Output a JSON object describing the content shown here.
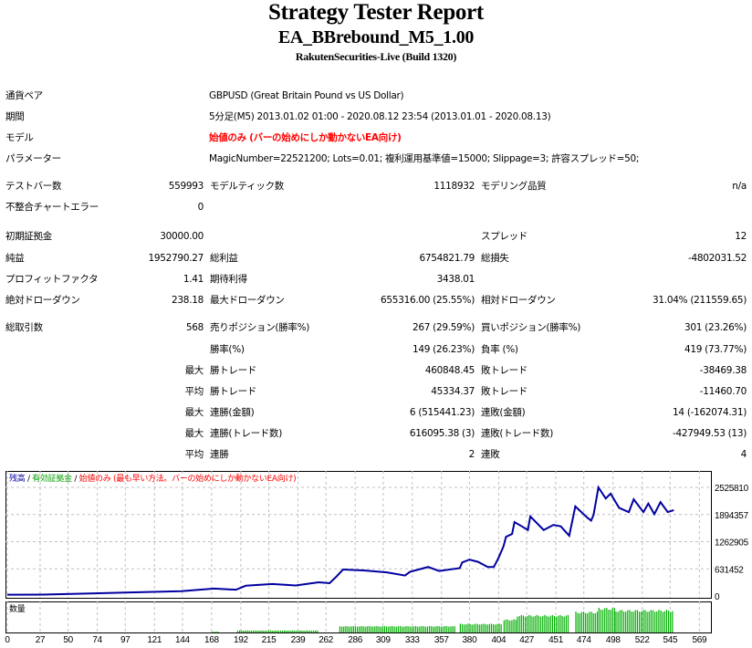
{
  "header": {
    "title": "Strategy Tester Report",
    "ea_name": "EA_BBrebound_M5_1.00",
    "server": "RakutenSecurities-Live (Build 1320)"
  },
  "info": [
    {
      "label": "通貨ペア",
      "value": "GBPUSD (Great Britain Pound vs US Dollar)"
    },
    {
      "label": "期間",
      "value": "5分足(M5) 2013.01.02 01:00 - 2020.08.12 23:54 (2013.01.01 - 2020.08.13)"
    },
    {
      "label": "モデル",
      "value": "始値のみ (バーの始めにしか動かないEA向け)"
    },
    {
      "label": "パラメーター",
      "value": "MagicNumber=22521200; Lots=0.01; 複利運用基準値=15000; Slippage=3; 許容スプレッド=50;"
    }
  ],
  "stats": [
    [
      "テストバー数",
      "559993",
      "モデルティック数",
      "1118932",
      "モデリング品質",
      "n/a"
    ],
    [
      "不整合チャートエラー",
      "0",
      "",
      "",
      "",
      ""
    ],
    [
      "初期証拠金",
      "30000.00",
      "",
      "",
      "スプレッド",
      "12"
    ],
    [
      "純益",
      "1952790.27",
      "総利益",
      "6754821.79",
      "総損失",
      "-4802031.52"
    ],
    [
      "プロフィットファクタ",
      "1.41",
      "期待利得",
      "3438.01",
      "",
      ""
    ],
    [
      "絶対ドローダウン",
      "238.18",
      "最大ドローダウン",
      "655316.00 (25.55%)",
      "相対ドローダウン",
      "31.04% (211559.65)"
    ],
    [
      "総取引数",
      "568",
      "売りポジション(勝率%)",
      "267 (29.59%)",
      "買いポジション(勝率%)",
      "301 (23.26%)"
    ],
    [
      "",
      "",
      "勝率(%)",
      "149 (26.23%)",
      "負率 (%)",
      "419 (73.77%)"
    ],
    [
      "",
      "最大",
      "勝トレード",
      "460848.45",
      "敗トレード",
      "-38469.38"
    ],
    [
      "",
      "平均",
      "勝トレード",
      "45334.37",
      "敗トレード",
      "-11460.70"
    ],
    [
      "",
      "最大",
      "連勝(金額)",
      "6 (515441.23)",
      "連敗(金額)",
      "14 (-162074.31)"
    ],
    [
      "",
      "最大",
      "連勝(トレード数)",
      "616095.38 (3)",
      "連敗(トレード数)",
      "-427949.53 (13)"
    ],
    [
      "",
      "平均",
      "連勝",
      "2",
      "連敗",
      "4"
    ]
  ],
  "chart_data": {
    "type": "line",
    "legend": {
      "balance": "残高",
      "equity": "有効証拠金",
      "model": "始値のみ (最も早い方法。バーの始めにしか動かないEA向け)",
      "sep": "/"
    },
    "colors": {
      "balance": "#0000a0",
      "equity": "#00a000",
      "model": "#ff0000",
      "volume": "#00b000"
    },
    "volume_label": "数量",
    "y_ticks": [
      "2525810",
      "1894357",
      "1262905",
      "631452",
      "0"
    ],
    "y_tick_values": [
      2525810,
      1894357,
      1262905,
      631452,
      0
    ],
    "ylim": [
      0,
      2525810
    ],
    "x_ticks": [
      0,
      27,
      50,
      74,
      97,
      121,
      144,
      168,
      192,
      215,
      239,
      262,
      286,
      309,
      333,
      357,
      380,
      404,
      427,
      451,
      474,
      498,
      522,
      545,
      569
    ],
    "xlim": [
      0,
      577
    ],
    "grid": true,
    "balance": [
      [
        0,
        30000
      ],
      [
        29,
        33060
      ],
      [
        68,
        59500
      ],
      [
        143,
        112400
      ],
      [
        170,
        171900
      ],
      [
        188,
        145500
      ],
      [
        196,
        238000
      ],
      [
        218,
        277700
      ],
      [
        237,
        244600
      ],
      [
        256,
        317400
      ],
      [
        265,
        297500
      ],
      [
        271,
        462800
      ],
      [
        276,
        614900
      ],
      [
        293,
        595100
      ],
      [
        312,
        548800
      ],
      [
        327,
        476100
      ],
      [
        331,
        562000
      ],
      [
        346,
        674400
      ],
      [
        355,
        581900
      ],
      [
        372,
        648000
      ],
      [
        374,
        780200
      ],
      [
        380,
        846300
      ],
      [
        387,
        793400
      ],
      [
        395,
        674400
      ],
      [
        400,
        674400
      ],
      [
        404,
        892600
      ],
      [
        408,
        1157100
      ],
      [
        410,
        1375300
      ],
      [
        415,
        1441400
      ],
      [
        417,
        1719100
      ],
      [
        423,
        1619900
      ],
      [
        428,
        1534000
      ],
      [
        430,
        1851400
      ],
      [
        441,
        1534000
      ],
      [
        449,
        1653000
      ],
      [
        455,
        1619900
      ],
      [
        462,
        1401700
      ],
      [
        467,
        2082800
      ],
      [
        477,
        1818300
      ],
      [
        480,
        1752200
      ],
      [
        482,
        1884400
      ],
      [
        486,
        2525800
      ],
      [
        492,
        2267900
      ],
      [
        496,
        2380300
      ],
      [
        503,
        2049700
      ],
      [
        511,
        1950500
      ],
      [
        515,
        2248100
      ],
      [
        523,
        1950500
      ],
      [
        527,
        2148900
      ],
      [
        532,
        1904300
      ],
      [
        537,
        2182000
      ],
      [
        543,
        1950500
      ],
      [
        548,
        1996800
      ]
    ],
    "volume_relative": [
      [
        168,
        174,
        0.03
      ],
      [
        189,
        256,
        0.07
      ],
      [
        273,
        369,
        0.22
      ],
      [
        372,
        406,
        0.3
      ],
      [
        408,
        419,
        0.45
      ],
      [
        419,
        462,
        0.6
      ],
      [
        467,
        485,
        0.72
      ],
      [
        486,
        500,
        0.85
      ],
      [
        500,
        548,
        0.78
      ]
    ]
  }
}
